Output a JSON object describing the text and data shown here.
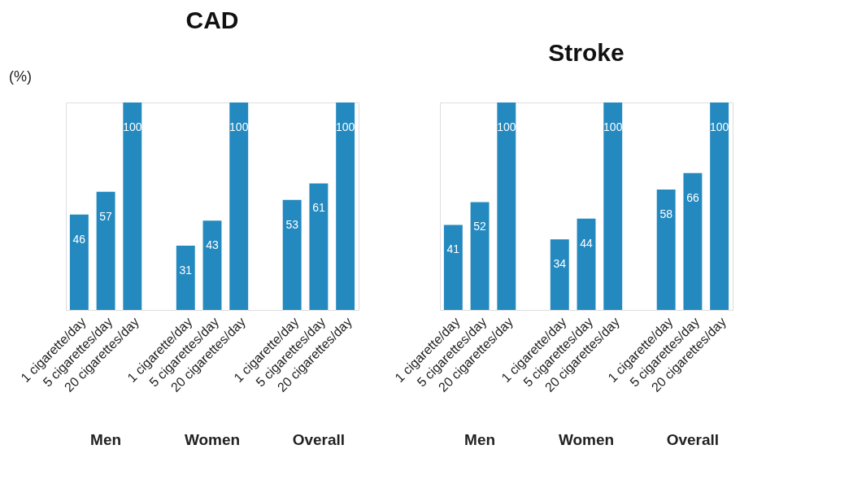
{
  "chart_data": [
    {
      "type": "bar",
      "title": "CAD",
      "ylabel": "(%)",
      "categories": [
        "1 cigarette/day",
        "5 cigarettes/day",
        "20 cigarettes/day",
        null,
        "1 cigarette/day",
        "5 cigarettes/day",
        "20 cigarettes/day",
        null,
        "1 cigarette/day",
        "5 cigarettes/day",
        "20 cigarettes/day"
      ],
      "values": [
        46,
        57,
        100,
        null,
        31,
        43,
        100,
        null,
        53,
        61,
        100
      ],
      "color": "#2389bf",
      "ylim": [
        0,
        100
      ],
      "data_labels": true,
      "tick_labels": "x",
      "grid": false,
      "annotations": [
        "Men",
        "Women",
        "Overall"
      ]
    },
    {
      "type": "bar",
      "title": "Stroke",
      "categories": [
        "1 cigarette/day",
        "5 cigarettes/day",
        "20 cigarettes/day",
        null,
        "1 cigarette/day",
        "5 cigarettes/day",
        "20 cigarettes/day",
        null,
        "1 cigarette/day",
        "5 cigarettes/day",
        "20 cigarettes/day"
      ],
      "values": [
        41,
        52,
        100,
        null,
        34,
        44,
        100,
        null,
        58,
        66,
        100
      ],
      "color": "#2389bf",
      "ylim": [
        0,
        100
      ],
      "data_labels": true,
      "tick_labels": "x",
      "grid": false,
      "annotations": [
        "Men",
        "Women",
        "Overall"
      ]
    }
  ]
}
